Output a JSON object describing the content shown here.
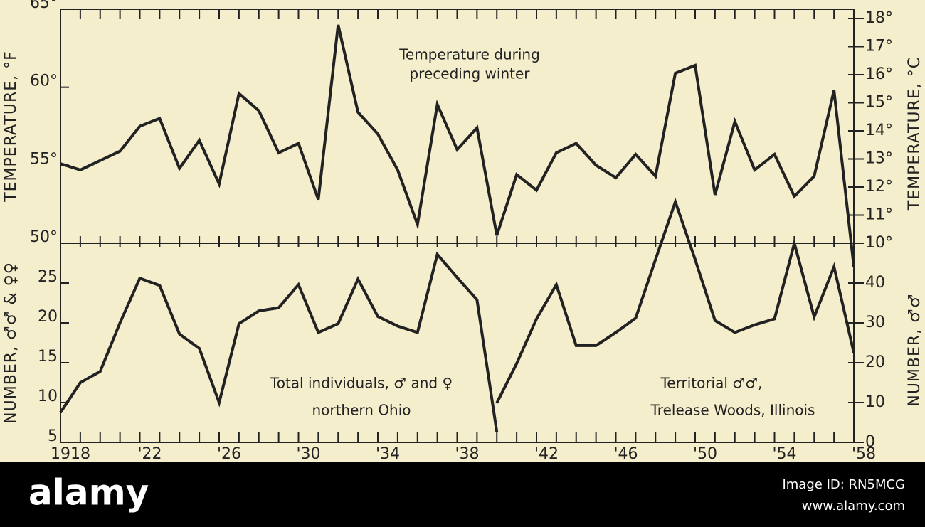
{
  "chart_data": [
    {
      "type": "line",
      "y_label": "TEMPERATURE, °F",
      "y2_label": "TEMPERATURE, °C",
      "annotation": [
        "Temperature during",
        "preceding winter"
      ],
      "x": [
        1918,
        1919,
        1920,
        1921,
        1922,
        1923,
        1924,
        1925,
        1926,
        1927,
        1928,
        1929,
        1930,
        1931,
        1932,
        1933,
        1934,
        1935,
        1936,
        1937,
        1938,
        1939,
        1940,
        1941,
        1942,
        1943,
        1944,
        1945,
        1946,
        1947,
        1948,
        1949,
        1950,
        1951,
        1952,
        1953,
        1954,
        1955,
        1956,
        1957,
        1958
      ],
      "xlim": [
        1918,
        1958
      ],
      "ylim": [
        50,
        65
      ],
      "yticks": [
        {
          "value": 50,
          "label": "50°"
        },
        {
          "value": 55,
          "label": "55°"
        },
        {
          "value": 60,
          "label": "60°"
        },
        {
          "value": 65,
          "label": "65°"
        }
      ],
      "y2lim": [
        10,
        18.33
      ],
      "y2ticks": [
        {
          "value": 10,
          "label": "10°"
        },
        {
          "value": 11,
          "label": "11°"
        },
        {
          "value": 12,
          "label": "12°"
        },
        {
          "value": 13,
          "label": "13°"
        },
        {
          "value": 14,
          "label": "14°"
        },
        {
          "value": 15,
          "label": "15°"
        },
        {
          "value": 16,
          "label": "16°"
        },
        {
          "value": 17,
          "label": "17°"
        },
        {
          "value": 18,
          "label": "18°"
        }
      ],
      "series": [
        {
          "color": "#222222",
          "values": [
            55.1,
            54.7,
            55.3,
            55.9,
            57.5,
            58.0,
            54.8,
            56.6,
            53.8,
            59.6,
            58.5,
            55.8,
            56.4,
            52.8,
            64.0,
            58.4,
            57.0,
            54.7,
            51.2,
            58.9,
            56.0,
            57.4,
            50.5,
            54.4,
            53.4,
            55.8,
            56.4,
            55.0,
            54.2,
            55.7,
            54.3,
            60.9,
            61.4,
            53.1,
            57.8,
            54.7,
            55.7,
            53.0,
            54.3,
            59.8,
            48.5
          ]
        }
      ]
    },
    {
      "type": "line",
      "y_label": "NUMBER, ♂♂ & ♀♀",
      "y2_label": "NUMBER, ♂♂",
      "annotations": [
        [
          "Total individuals, ♂ and ♀",
          "northern Ohio"
        ],
        [
          "Territorial ♂♂,",
          "Trelease Woods, Illinois"
        ]
      ],
      "x": [
        1918,
        1919,
        1920,
        1921,
        1922,
        1923,
        1924,
        1925,
        1926,
        1927,
        1928,
        1929,
        1930,
        1931,
        1932,
        1933,
        1934,
        1935,
        1936,
        1937,
        1938,
        1939,
        1940,
        1941,
        1942,
        1943,
        1944,
        1945,
        1946,
        1947,
        1948,
        1949,
        1950,
        1951,
        1952,
        1953,
        1954,
        1955,
        1956,
        1957,
        1958
      ],
      "xlim": [
        1918,
        1958
      ],
      "xticks": [
        {
          "value": 1918,
          "label": "1918"
        },
        {
          "value": 1922,
          "label": "'22"
        },
        {
          "value": 1926,
          "label": "'26"
        },
        {
          "value": 1930,
          "label": "'30"
        },
        {
          "value": 1934,
          "label": "'34"
        },
        {
          "value": 1938,
          "label": "'38"
        },
        {
          "value": 1942,
          "label": "'42"
        },
        {
          "value": 1946,
          "label": "'46"
        },
        {
          "value": 1950,
          "label": "'50"
        },
        {
          "value": 1954,
          "label": "'54"
        },
        {
          "value": 1958,
          "label": "'58"
        }
      ],
      "ylim": [
        5,
        30
      ],
      "yticks": [
        5,
        10,
        15,
        20,
        25
      ],
      "y2lim": [
        0,
        50
      ],
      "y2ticks": [
        0,
        10,
        20,
        30,
        40
      ],
      "series": [
        {
          "color": "#222222",
          "values": [
            8.75,
            12.5,
            13.9,
            20,
            25.6,
            24.7,
            18.6,
            16.8,
            10,
            19.9,
            21.5,
            21.9,
            24.8,
            18.8,
            19.9,
            25.5,
            20.8,
            19.6,
            18.8,
            28.6,
            25.7,
            22.9,
            6.3,
            null,
            null,
            null,
            null,
            null,
            null,
            null,
            null,
            null,
            null,
            null,
            null,
            null,
            null,
            null,
            null,
            null,
            null
          ]
        },
        {
          "color": "#222222",
          "axis": "y2",
          "values": [
            null,
            null,
            null,
            null,
            null,
            null,
            null,
            null,
            null,
            null,
            null,
            null,
            null,
            null,
            null,
            null,
            null,
            null,
            null,
            null,
            null,
            null,
            9.9,
            19.8,
            31,
            39.6,
            24.3,
            24.3,
            27.6,
            31.2,
            45.9,
            60.4,
            45.9,
            30.6,
            27.6,
            29.5,
            31,
            50,
            31.5,
            44.1,
            22.5
          ]
        }
      ]
    }
  ],
  "watermark": {
    "logo": "alamy",
    "image_id": "Image ID: RN5MCG",
    "site": "www.alamy.com"
  }
}
